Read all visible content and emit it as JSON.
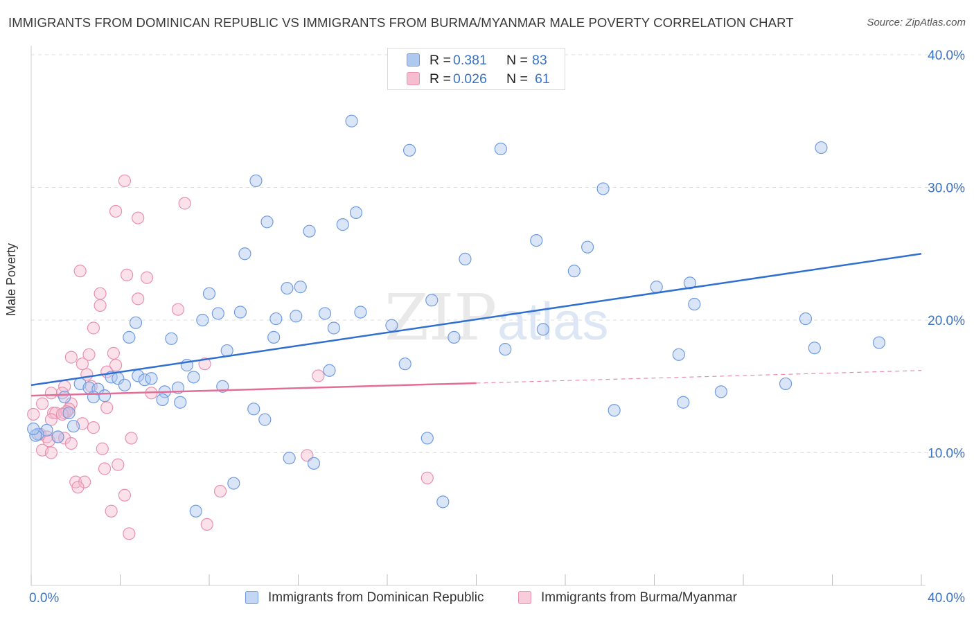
{
  "title": "IMMIGRANTS FROM DOMINICAN REPUBLIC VS IMMIGRANTS FROM BURMA/MYANMAR MALE POVERTY CORRELATION CHART",
  "source": "Source: ZipAtlas.com",
  "watermark": {
    "zip": "ZIP",
    "atlas": "atlas"
  },
  "legend": {
    "r_label": "R =",
    "n_label": "N =",
    "rows": [
      {
        "r": "0.381",
        "n": "83"
      },
      {
        "r": "0.026",
        "n": "61"
      }
    ]
  },
  "colors": {
    "blue_fill": "#aec8ef",
    "blue_stroke": "#6f9be0",
    "blue_line": "#2f6fd1",
    "pink_fill": "#f6bcd0",
    "pink_stroke": "#e891b0",
    "pink_line": "#e36d96",
    "axis_text": "#3a72c4",
    "grid": "#dedede"
  },
  "chart_data": {
    "type": "scatter",
    "title": "IMMIGRANTS FROM DOMINICAN REPUBLIC VS IMMIGRANTS FROM BURMA/MYANMAR MALE POVERTY CORRELATION CHART",
    "xlabel": "",
    "ylabel": "Male Poverty",
    "xlim": [
      0,
      40
    ],
    "ylim": [
      0,
      40
    ],
    "x_tick_labels": [
      "0.0%",
      "40.0%"
    ],
    "y_ticks": [
      10,
      20,
      30,
      40
    ],
    "y_tick_labels": [
      "10.0%",
      "20.0%",
      "30.0%",
      "40.0%"
    ],
    "series": [
      {
        "name": "Immigrants from Dominican Republic",
        "color": "blue",
        "r": 0.381,
        "n": 83,
        "trend": {
          "x": [
            0,
            40
          ],
          "y": [
            15.1,
            25.0
          ],
          "solid_to": 40
        },
        "points": [
          [
            14.4,
            35.0
          ],
          [
            17.0,
            32.8
          ],
          [
            21.1,
            32.9
          ],
          [
            35.5,
            33.0
          ],
          [
            10.1,
            30.5
          ],
          [
            25.7,
            29.9
          ],
          [
            10.6,
            27.4
          ],
          [
            12.5,
            26.7
          ],
          [
            14.0,
            27.2
          ],
          [
            14.6,
            28.1
          ],
          [
            22.7,
            26.0
          ],
          [
            19.5,
            24.6
          ],
          [
            25.0,
            25.5
          ],
          [
            9.6,
            25.0
          ],
          [
            24.4,
            23.7
          ],
          [
            28.1,
            22.5
          ],
          [
            29.6,
            22.8
          ],
          [
            11.5,
            22.4
          ],
          [
            12.1,
            22.5
          ],
          [
            8.0,
            22.0
          ],
          [
            18.0,
            21.5
          ],
          [
            29.8,
            21.2
          ],
          [
            8.4,
            20.5
          ],
          [
            9.4,
            20.6
          ],
          [
            11.0,
            20.1
          ],
          [
            11.9,
            20.3
          ],
          [
            13.2,
            20.5
          ],
          [
            14.8,
            20.6
          ],
          [
            7.7,
            20.0
          ],
          [
            4.7,
            19.8
          ],
          [
            13.6,
            19.4
          ],
          [
            16.2,
            19.6
          ],
          [
            23.0,
            19.3
          ],
          [
            34.8,
            20.1
          ],
          [
            4.4,
            18.7
          ],
          [
            6.3,
            18.6
          ],
          [
            10.9,
            18.7
          ],
          [
            19.0,
            18.7
          ],
          [
            21.3,
            17.8
          ],
          [
            35.2,
            17.9
          ],
          [
            38.1,
            18.3
          ],
          [
            8.8,
            17.7
          ],
          [
            29.1,
            17.4
          ],
          [
            16.8,
            16.7
          ],
          [
            7.0,
            16.6
          ],
          [
            13.4,
            16.2
          ],
          [
            3.6,
            15.7
          ],
          [
            3.9,
            15.6
          ],
          [
            4.8,
            15.8
          ],
          [
            5.1,
            15.5
          ],
          [
            5.4,
            15.6
          ],
          [
            7.3,
            15.7
          ],
          [
            2.2,
            15.2
          ],
          [
            4.2,
            15.1
          ],
          [
            8.6,
            15.0
          ],
          [
            2.6,
            14.9
          ],
          [
            3.0,
            14.8
          ],
          [
            6.0,
            14.6
          ],
          [
            6.6,
            14.9
          ],
          [
            31.0,
            14.6
          ],
          [
            33.9,
            15.2
          ],
          [
            1.5,
            14.2
          ],
          [
            2.8,
            14.2
          ],
          [
            3.3,
            14.3
          ],
          [
            5.9,
            14.0
          ],
          [
            6.7,
            13.8
          ],
          [
            29.3,
            13.8
          ],
          [
            1.7,
            13.0
          ],
          [
            10.0,
            13.3
          ],
          [
            26.2,
            13.2
          ],
          [
            10.5,
            12.5
          ],
          [
            1.9,
            12.0
          ],
          [
            0.7,
            11.7
          ],
          [
            0.3,
            11.4
          ],
          [
            1.2,
            11.2
          ],
          [
            0.2,
            11.3
          ],
          [
            17.8,
            11.1
          ],
          [
            11.6,
            9.6
          ],
          [
            12.7,
            9.2
          ],
          [
            9.1,
            7.7
          ],
          [
            18.5,
            6.3
          ],
          [
            7.4,
            5.6
          ],
          [
            0.1,
            11.8
          ]
        ]
      },
      {
        "name": "Immigrants from Burma/Myanmar",
        "color": "pink",
        "r": 0.026,
        "n": 61,
        "trend": {
          "x": [
            0,
            40
          ],
          "y": [
            14.3,
            16.2
          ],
          "solid_to": 20
        },
        "points": [
          [
            4.2,
            30.5
          ],
          [
            6.9,
            28.8
          ],
          [
            3.8,
            28.2
          ],
          [
            4.8,
            27.7
          ],
          [
            2.2,
            23.7
          ],
          [
            4.3,
            23.4
          ],
          [
            5.2,
            23.2
          ],
          [
            3.1,
            22.0
          ],
          [
            4.8,
            21.6
          ],
          [
            3.1,
            21.1
          ],
          [
            6.6,
            20.8
          ],
          [
            2.8,
            19.4
          ],
          [
            1.8,
            17.2
          ],
          [
            2.6,
            17.4
          ],
          [
            3.7,
            17.5
          ],
          [
            7.8,
            16.7
          ],
          [
            2.3,
            16.7
          ],
          [
            3.8,
            16.6
          ],
          [
            3.4,
            16.1
          ],
          [
            2.5,
            15.9
          ],
          [
            12.9,
            15.8
          ],
          [
            1.5,
            15.0
          ],
          [
            2.7,
            15.0
          ],
          [
            0.9,
            14.5
          ],
          [
            1.4,
            14.5
          ],
          [
            5.4,
            14.5
          ],
          [
            0.5,
            13.7
          ],
          [
            1.8,
            13.7
          ],
          [
            1.7,
            13.3
          ],
          [
            3.4,
            13.4
          ],
          [
            1.0,
            13.0
          ],
          [
            1.1,
            13.0
          ],
          [
            1.5,
            13.0
          ],
          [
            1.6,
            13.1
          ],
          [
            1.4,
            12.9
          ],
          [
            0.9,
            12.5
          ],
          [
            0.1,
            12.9
          ],
          [
            2.3,
            12.2
          ],
          [
            2.8,
            11.9
          ],
          [
            0.4,
            11.4
          ],
          [
            0.7,
            11.2
          ],
          [
            1.2,
            11.2
          ],
          [
            1.5,
            11.1
          ],
          [
            4.5,
            11.1
          ],
          [
            0.8,
            10.9
          ],
          [
            1.8,
            10.7
          ],
          [
            0.5,
            10.2
          ],
          [
            3.2,
            10.3
          ],
          [
            0.9,
            10.0
          ],
          [
            12.4,
            9.8
          ],
          [
            3.9,
            9.1
          ],
          [
            3.3,
            8.8
          ],
          [
            2.0,
            7.8
          ],
          [
            2.4,
            7.8
          ],
          [
            17.8,
            8.1
          ],
          [
            2.1,
            7.4
          ],
          [
            8.5,
            7.1
          ],
          [
            4.2,
            6.8
          ],
          [
            3.6,
            5.6
          ],
          [
            7.9,
            4.6
          ],
          [
            4.4,
            3.9
          ]
        ]
      }
    ]
  }
}
